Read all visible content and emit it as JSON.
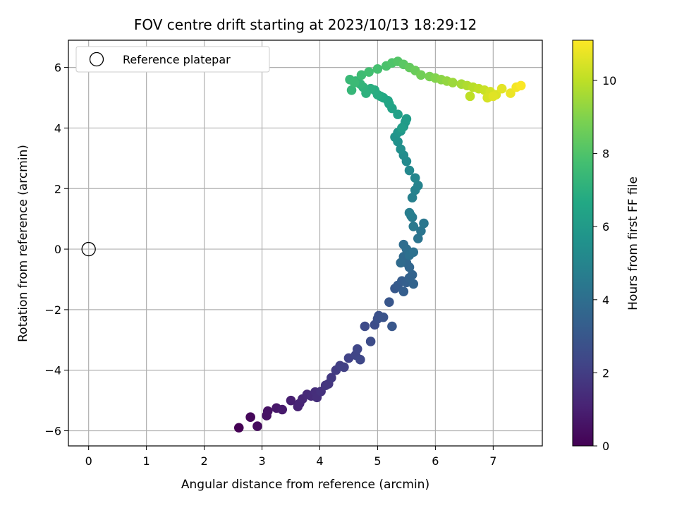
{
  "chart_data": {
    "type": "scatter",
    "title": "FOV centre drift starting at 2023/10/13 18:29:12",
    "xlabel": "Angular distance from reference (arcmin)",
    "ylabel": "Rotation from reference (arcmin)",
    "xlim": [
      -0.35,
      7.85
    ],
    "ylim": [
      -6.5,
      6.9
    ],
    "xticks": [
      0,
      1,
      2,
      3,
      4,
      5,
      6,
      7
    ],
    "yticks": [
      -6,
      -4,
      -2,
      0,
      2,
      4,
      6
    ],
    "grid": true,
    "legend": {
      "placement": "top-left",
      "entries": [
        "Reference platepar"
      ]
    },
    "reference_point": {
      "x": 0,
      "y": 0
    },
    "colorbar": {
      "label": "Hours from first FF file",
      "min": 0,
      "max": 11.1,
      "ticks": [
        0,
        2,
        4,
        6,
        8,
        10
      ],
      "colormap": "viridis"
    },
    "series": [
      {
        "x": [
          2.6,
          2.8,
          2.92,
          3.08,
          3.1,
          3.25,
          3.35,
          3.5,
          3.62,
          3.65,
          3.7,
          3.78,
          3.85,
          3.92,
          3.95,
          4.02,
          4.1,
          4.15,
          4.2,
          4.28,
          4.35,
          4.42,
          4.5,
          4.62,
          4.65,
          4.7,
          4.78,
          4.88,
          4.95,
          5.0,
          5.02,
          5.1,
          5.2,
          5.25,
          5.3,
          5.35,
          5.42,
          5.45,
          5.5,
          5.55,
          5.6,
          5.62,
          5.55,
          5.5,
          5.45,
          5.4,
          5.45,
          5.5,
          5.55,
          5.62,
          5.7,
          5.75,
          5.8,
          5.62,
          5.6,
          5.58,
          5.55,
          5.6,
          5.65,
          5.7,
          5.65,
          5.55,
          5.5,
          5.45,
          5.4,
          5.35,
          5.3,
          5.35,
          5.4,
          5.45,
          5.48,
          5.5,
          5.42,
          5.35,
          5.25,
          5.2,
          5.18,
          5.1,
          5.05,
          5.0,
          4.95,
          4.88,
          4.8,
          4.75,
          4.7,
          4.62,
          4.55,
          4.52,
          4.6,
          4.72,
          4.85,
          5.0,
          5.15,
          5.25,
          5.35,
          5.45,
          5.55,
          5.65,
          5.75,
          5.9,
          6.0,
          6.1,
          6.2,
          6.3,
          6.45,
          6.55,
          6.65,
          6.75,
          6.85,
          6.95,
          7.05,
          7.15,
          7.3,
          7.4,
          7.48,
          6.6,
          6.9,
          7.0
        ],
        "y": [
          -5.9,
          -5.55,
          -5.85,
          -5.5,
          -5.35,
          -5.25,
          -5.3,
          -5.0,
          -5.2,
          -5.1,
          -4.95,
          -4.8,
          -4.85,
          -4.72,
          -4.9,
          -4.7,
          -4.5,
          -4.45,
          -4.25,
          -4.0,
          -3.85,
          -3.9,
          -3.6,
          -3.5,
          -3.3,
          -3.65,
          -2.55,
          -3.05,
          -2.5,
          -2.3,
          -2.2,
          -2.25,
          -1.75,
          -2.55,
          -1.3,
          -1.2,
          -1.05,
          -1.4,
          -1.1,
          -0.95,
          -0.85,
          -1.15,
          -0.6,
          -0.45,
          -0.25,
          -0.45,
          0.15,
          0.0,
          -0.2,
          -0.1,
          0.35,
          0.6,
          0.85,
          0.75,
          1.05,
          1.1,
          1.2,
          1.7,
          1.95,
          2.1,
          2.35,
          2.6,
          2.9,
          3.1,
          3.3,
          3.55,
          3.7,
          3.85,
          3.9,
          4.05,
          4.2,
          4.3,
          4.0,
          4.45,
          4.65,
          4.8,
          4.9,
          5.0,
          5.05,
          5.1,
          5.25,
          5.3,
          5.15,
          5.35,
          5.45,
          5.55,
          5.25,
          5.6,
          5.5,
          5.75,
          5.85,
          5.95,
          6.05,
          6.15,
          6.2,
          6.1,
          6.0,
          5.9,
          5.75,
          5.7,
          5.65,
          5.6,
          5.55,
          5.5,
          5.45,
          5.4,
          5.35,
          5.3,
          5.25,
          5.2,
          5.1,
          5.3,
          5.15,
          5.35,
          5.4,
          5.05,
          5.0,
          5.05
        ],
        "c": [
          0.0,
          0.2,
          0.35,
          0.5,
          0.55,
          0.7,
          0.8,
          0.95,
          1.05,
          1.1,
          1.2,
          1.3,
          1.35,
          1.45,
          1.5,
          1.6,
          1.7,
          1.75,
          1.85,
          1.95,
          2.05,
          2.1,
          2.2,
          2.3,
          2.35,
          2.4,
          2.5,
          2.55,
          2.6,
          2.7,
          2.75,
          2.85,
          2.95,
          3.0,
          3.05,
          3.15,
          3.25,
          3.3,
          3.35,
          3.45,
          3.5,
          3.55,
          3.65,
          3.7,
          3.8,
          3.85,
          3.95,
          4.0,
          4.1,
          4.15,
          4.25,
          4.3,
          4.4,
          4.5,
          4.55,
          4.65,
          4.7,
          4.8,
          4.9,
          4.95,
          5.05,
          5.15,
          5.25,
          5.35,
          5.45,
          5.55,
          5.65,
          5.75,
          5.85,
          5.9,
          6.0,
          6.1,
          6.15,
          6.25,
          6.35,
          6.45,
          6.5,
          6.6,
          6.7,
          6.8,
          6.85,
          6.95,
          7.05,
          7.1,
          7.2,
          7.3,
          7.35,
          7.45,
          7.5,
          7.6,
          7.7,
          7.8,
          7.9,
          8.0,
          8.1,
          8.25,
          8.4,
          8.55,
          8.7,
          8.85,
          9.0,
          9.15,
          9.3,
          9.45,
          9.6,
          9.75,
          9.9,
          10.05,
          10.2,
          10.35,
          10.5,
          10.65,
          10.8,
          10.95,
          11.05,
          10.0,
          10.4,
          10.6
        ]
      }
    ]
  }
}
